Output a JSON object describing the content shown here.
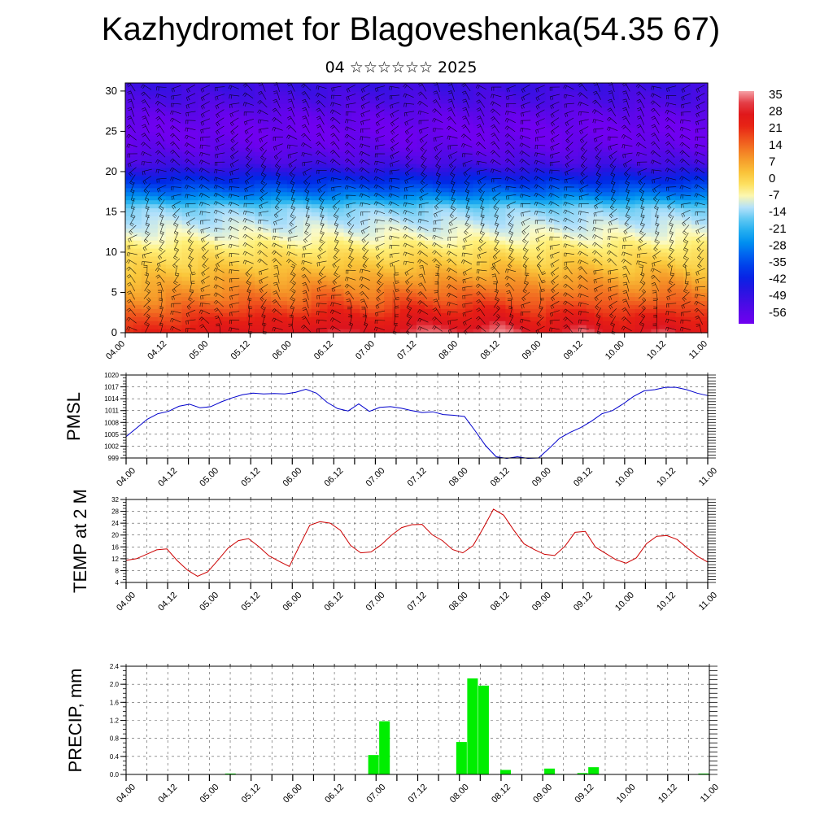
{
  "header": {
    "title": "Kazhydromet for Blagoveshenka(54.35 67)",
    "subtitle": "04 ☆☆☆☆☆☆ 2025"
  },
  "time_ticks": [
    "04.00",
    "04.12",
    "05.00",
    "05.12",
    "06.00",
    "06.12",
    "07.00",
    "07.12",
    "08.00",
    "08.12",
    "09.00",
    "09.12",
    "10.00",
    "10.12",
    "11.00"
  ],
  "chart_data": [
    {
      "id": "temperature-cross-section",
      "type": "heatmap",
      "x_ticks": [
        "04.00",
        "04.12",
        "05.00",
        "05.12",
        "06.00",
        "06.12",
        "07.00",
        "07.12",
        "08.00",
        "08.12",
        "09.00",
        "09.12",
        "10.00",
        "10.12",
        "11.00"
      ],
      "y_ticks": [
        0,
        5,
        10,
        15,
        20,
        25,
        30
      ],
      "ylim": [
        0,
        31
      ],
      "colorbar_labels": [
        "35",
        "28",
        "21",
        "14",
        "7",
        "0",
        "-7",
        "-14",
        "-21",
        "-28",
        "-35",
        "-42",
        "-49",
        "-56"
      ],
      "colorbar_range": [
        -63,
        35
      ],
      "overlay": "wind barbs",
      "profile_levels": [
        0,
        2,
        4,
        6,
        8,
        10,
        12,
        14,
        15.5,
        17,
        19,
        21,
        23,
        25,
        27,
        29,
        31
      ],
      "profile_values": [
        22,
        16,
        9,
        4,
        -1,
        -5,
        -10,
        -14,
        -17,
        -30,
        -42,
        -54,
        -60,
        -63,
        -60,
        -55,
        -52
      ],
      "surface_anomaly": [
        {
          "t": 0,
          "v": -3
        },
        {
          "t": 0.5,
          "v": 0
        },
        {
          "t": 1,
          "v": 3
        },
        {
          "t": 1.5,
          "v": 6
        },
        {
          "t": 2,
          "v": 4
        },
        {
          "t": 2.5,
          "v": 10
        },
        {
          "t": 3,
          "v": 4
        },
        {
          "t": 3.5,
          "v": 11
        },
        {
          "t": 4,
          "v": 8
        },
        {
          "t": 4.5,
          "v": 12
        },
        {
          "t": 5,
          "v": 4
        },
        {
          "t": 5.5,
          "v": 10
        },
        {
          "t": 6,
          "v": 3
        },
        {
          "t": 6.5,
          "v": 9
        },
        {
          "t": 7,
          "v": 2
        }
      ]
    },
    {
      "id": "pmsl-chart",
      "type": "line",
      "ylabel": "PMSL",
      "x_ticks": [
        "04.00",
        "04.12",
        "05.00",
        "05.12",
        "06.00",
        "06.12",
        "07.00",
        "07.12",
        "08.00",
        "08.12",
        "09.00",
        "09.12",
        "10.00",
        "10.12",
        "11.00"
      ],
      "y_ticks": [
        999,
        1002,
        1005,
        1008,
        1011,
        1014,
        1017,
        1020
      ],
      "ylim": [
        999,
        1020
      ],
      "color": "#0000cc",
      "values": [
        1004.4,
        1006.6,
        1008.8,
        1010.2,
        1010.8,
        1012.1,
        1012.6,
        1011.7,
        1012.0,
        1013.2,
        1014.2,
        1015.0,
        1015.4,
        1015.2,
        1015.3,
        1015.2,
        1015.6,
        1016.4,
        1015.4,
        1013.1,
        1011.5,
        1010.9,
        1012.7,
        1010.8,
        1011.8,
        1012.0,
        1011.6,
        1011.0,
        1010.5,
        1010.7,
        1010.0,
        1009.8,
        1009.5,
        1005.9,
        1002.1,
        999.3,
        998.9,
        999.3,
        998.9,
        999.0,
        1001.4,
        1004.0,
        1005.5,
        1006.7,
        1008.3,
        1010.2,
        1011.0,
        1012.7,
        1014.6,
        1016.0,
        1016.3,
        1016.9,
        1016.9,
        1016.3,
        1015.4,
        1014.8
      ]
    },
    {
      "id": "temp2m-chart",
      "type": "line",
      "ylabel": "TEMP at 2 M",
      "x_ticks": [
        "04.00",
        "04.12",
        "05.00",
        "05.12",
        "06.00",
        "06.12",
        "07.00",
        "07.12",
        "08.00",
        "08.12",
        "09.00",
        "09.12",
        "10.00",
        "10.12",
        "11.00"
      ],
      "y_ticks": [
        4,
        8,
        12,
        16,
        20,
        24,
        28,
        32
      ],
      "ylim": [
        4,
        32
      ],
      "color": "#cc0000",
      "values": [
        11.5,
        12.0,
        13.5,
        15.0,
        15.3,
        11.4,
        8.2,
        6.1,
        7.6,
        11.5,
        15.6,
        18.1,
        18.8,
        16.1,
        13.0,
        11.1,
        9.4,
        16.4,
        23.3,
        24.5,
        24.0,
        21.6,
        16.5,
        14.0,
        14.3,
        16.7,
        19.9,
        22.5,
        23.5,
        23.6,
        20.1,
        18.1,
        15.1,
        14.0,
        16.4,
        22.3,
        28.7,
        26.7,
        21.6,
        17.0,
        15.1,
        13.5,
        13.1,
        16.2,
        20.9,
        21.2,
        15.9,
        13.8,
        11.7,
        10.5,
        12.3,
        17.1,
        19.6,
        19.8,
        18.5,
        15.6,
        12.8,
        10.9
      ]
    },
    {
      "id": "precip-chart",
      "type": "bar",
      "ylabel": "PRECIP, mm",
      "x_ticks": [
        "04.00",
        "04.12",
        "05.00",
        "05.12",
        "06.00",
        "06.12",
        "07.00",
        "07.12",
        "08.00",
        "08.12",
        "09.00",
        "09.12",
        "10.00",
        "10.12",
        "11.00"
      ],
      "y_ticks": [
        "0.0",
        "0.4",
        "0.8",
        "1.2",
        "1.6",
        "2.0",
        "2.4"
      ],
      "ylim": [
        0,
        2.4
      ],
      "color": "#00ee00",
      "values": [
        0,
        0,
        0,
        0,
        0,
        0,
        0,
        0,
        0,
        0.02,
        0,
        0,
        0,
        0,
        0,
        0,
        0,
        0,
        0,
        0,
        0,
        0,
        0.43,
        1.18,
        0,
        0,
        0,
        0,
        0,
        0,
        0.72,
        2.13,
        1.97,
        0,
        0.1,
        0,
        0,
        0,
        0.13,
        0.01,
        0,
        0.03,
        0.16,
        0,
        0,
        0,
        0,
        0,
        0,
        0,
        0,
        0,
        0.02
      ]
    }
  ]
}
